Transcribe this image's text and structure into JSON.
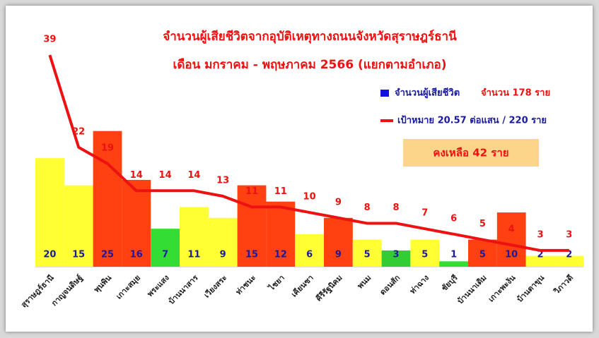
{
  "chart_data": {
    "type": "bar_line",
    "title": "จำนวนผู้เสียชีวิตจากอุบัติเหตุทางถนนจังหวัดสุราษฎร์ธานี",
    "subtitle": "เดือน มกราคม -  พฤษภาคม 2566 (แยกตามอำเภอ)",
    "annotation": "คงเหลือ  42 ราย",
    "categories": [
      "สุราษฎร์ธานี",
      "กาญจนดิษฐ์",
      "พุนพิน",
      "เกาะสมุย",
      "พระแสง",
      "บ้านนาสาร",
      "เวียงสระ",
      "ท่าชนะ",
      "ไชยา",
      "เคียนซา",
      "คีรีรัฐนิคม",
      "พนม",
      "ดอนสัก",
      "ท่าฉาง",
      "ชัยบุรี",
      "บ้านนาเดิม",
      "เกาะพะงัน",
      "บ้านตาขุน",
      "วิภาวดี"
    ],
    "series": [
      {
        "name": "จำนวนผู้เสียชีวิต",
        "legend_note": "จำนวน 178 ราย",
        "color": "#1010e0",
        "values": [
          20,
          15,
          25,
          16,
          7,
          11,
          9,
          15,
          12,
          6,
          9,
          5,
          3,
          5,
          1,
          5,
          10,
          2,
          2
        ],
        "colors": [
          "#ffff33",
          "#ffff33",
          "#ff4010",
          "#ff4010",
          "#33dd33",
          "#ffff33",
          "#ffff33",
          "#ff4010",
          "#ff4010",
          "#ffff33",
          "#ff4010",
          "#ffff33",
          "#33cc33",
          "#ffff33",
          "#33dd33",
          "#ff4010",
          "#ff4010",
          "#ffff33",
          "#ffff33"
        ]
      },
      {
        "name": "เป้าหมาย 20.57 ต่อแสน / 220 ราย",
        "color": "#ee1111",
        "values": [
          39,
          22,
          19,
          14,
          14,
          14,
          13,
          11,
          11,
          10,
          9,
          8,
          8,
          7,
          6,
          5,
          4,
          3,
          3
        ]
      }
    ]
  }
}
